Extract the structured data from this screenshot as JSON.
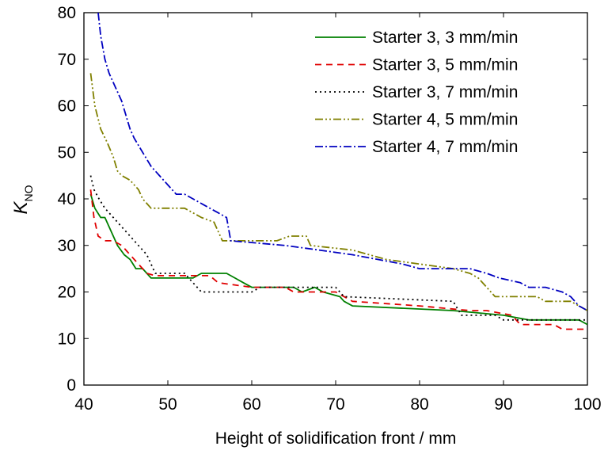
{
  "chart_data": {
    "type": "line",
    "xlabel": "Height of solidification front / mm",
    "ylabel_main": "K",
    "ylabel_sub": "NO",
    "xlim": [
      40,
      100
    ],
    "ylim": [
      0,
      80
    ],
    "xticks": [
      40,
      50,
      60,
      70,
      80,
      90,
      100
    ],
    "yticks": [
      0,
      10,
      20,
      30,
      40,
      50,
      60,
      70,
      80
    ],
    "grid": false,
    "legend_position": "top-right",
    "series": [
      {
        "name": "Starter 3, 3 mm/min",
        "color": "#008000",
        "dash": "solid",
        "x": [
          40.8,
          41.3,
          42.0,
          42.5,
          43.0,
          43.5,
          44.0,
          44.8,
          45.5,
          46.2,
          47.0,
          47.5,
          48.0,
          53.0,
          54.0,
          57.0,
          58.0,
          59.0,
          60.0,
          65.0,
          66.0,
          67.5,
          68.5,
          70.5,
          71.0,
          72.0,
          84.0,
          90.0,
          93.0,
          99.0,
          100.0
        ],
        "values": [
          41,
          38,
          36,
          36,
          34,
          32,
          30,
          28,
          27,
          25,
          25,
          24,
          23,
          23,
          24,
          24,
          23,
          22,
          21,
          21,
          20,
          21,
          20,
          19,
          18,
          17,
          16,
          15,
          14,
          14,
          13
        ]
      },
      {
        "name": "Starter 3, 5 mm/min",
        "color": "#e00000",
        "dash": "8,6",
        "x": [
          40.8,
          41.2,
          41.7,
          42.5,
          43.5,
          44.5,
          45.5,
          46.5,
          47.5,
          48.5,
          55.0,
          56.0,
          60.0,
          64.0,
          65.0,
          68.0,
          70.0,
          72.0,
          80.0,
          86.0,
          88.0,
          91.0,
          92.0,
          96.0,
          97.0,
          100.0
        ],
        "values": [
          42,
          36,
          32,
          31,
          31,
          30,
          28,
          26,
          24,
          23.5,
          23.5,
          22,
          21,
          21,
          20,
          20,
          20,
          18,
          17,
          16,
          16,
          15,
          13,
          13,
          12,
          12
        ]
      },
      {
        "name": "Starter 3, 7 mm/min",
        "color": "#000000",
        "dash": "2,4",
        "x": [
          40.8,
          41.2,
          41.8,
          42.5,
          43.5,
          44.5,
          45.5,
          46.5,
          47.5,
          48.5,
          52.0,
          53.0,
          54.0,
          60.0,
          61.0,
          70.0,
          71.0,
          84.0,
          85.0,
          89.0,
          90.0,
          100.0
        ],
        "values": [
          45,
          42,
          40,
          38,
          36,
          34,
          32,
          30,
          28,
          24,
          24,
          22,
          20,
          20,
          21,
          21,
          19,
          18,
          15,
          15,
          14,
          14
        ]
      },
      {
        "name": "Starter 4, 5 mm/min",
        "color": "#808000",
        "dash": "10,3,2,3,2,3",
        "x": [
          40.8,
          41.3,
          42.0,
          42.8,
          43.5,
          44.0,
          44.5,
          45.5,
          46.5,
          47.0,
          47.5,
          48.0,
          52.0,
          54.0,
          55.5,
          56.0,
          56.5,
          63.0,
          64.5,
          66.5,
          67.0,
          72.0,
          76.0,
          84.0,
          86.0,
          87.0,
          88.0,
          89.0,
          94.0,
          95.0,
          98.0,
          99.0,
          100.0
        ],
        "values": [
          67,
          60,
          55,
          52,
          49,
          46,
          45,
          44,
          42,
          40,
          39,
          38,
          38,
          36,
          35,
          33,
          31,
          31,
          32,
          32,
          30,
          29,
          27,
          25,
          24,
          23,
          21,
          19,
          19,
          18,
          18,
          17,
          16
        ]
      },
      {
        "name": "Starter 4, 7 mm/min",
        "color": "#0000c0",
        "dash": "10,3,2,3",
        "x": [
          41.7,
          42.0,
          42.5,
          43.0,
          44.0,
          44.5,
          45.0,
          45.5,
          46.0,
          47.0,
          48.0,
          49.0,
          50.0,
          51.0,
          52.0,
          53.0,
          54.0,
          55.0,
          56.0,
          57.0,
          57.5,
          64.0,
          68.0,
          72.0,
          75.0,
          78.0,
          80.0,
          86.0,
          88.0,
          89.5,
          92.0,
          93.0,
          95.0,
          97.0,
          98.0,
          99.0,
          100.0
        ],
        "values": [
          80,
          75,
          70,
          67,
          63,
          61,
          58,
          55,
          53,
          50,
          47,
          45,
          43,
          41,
          41,
          40,
          39,
          38,
          37,
          36,
          31,
          30,
          29,
          28,
          27,
          26,
          25,
          25,
          24,
          23,
          22,
          21,
          21,
          20,
          19,
          17,
          16
        ]
      }
    ]
  }
}
